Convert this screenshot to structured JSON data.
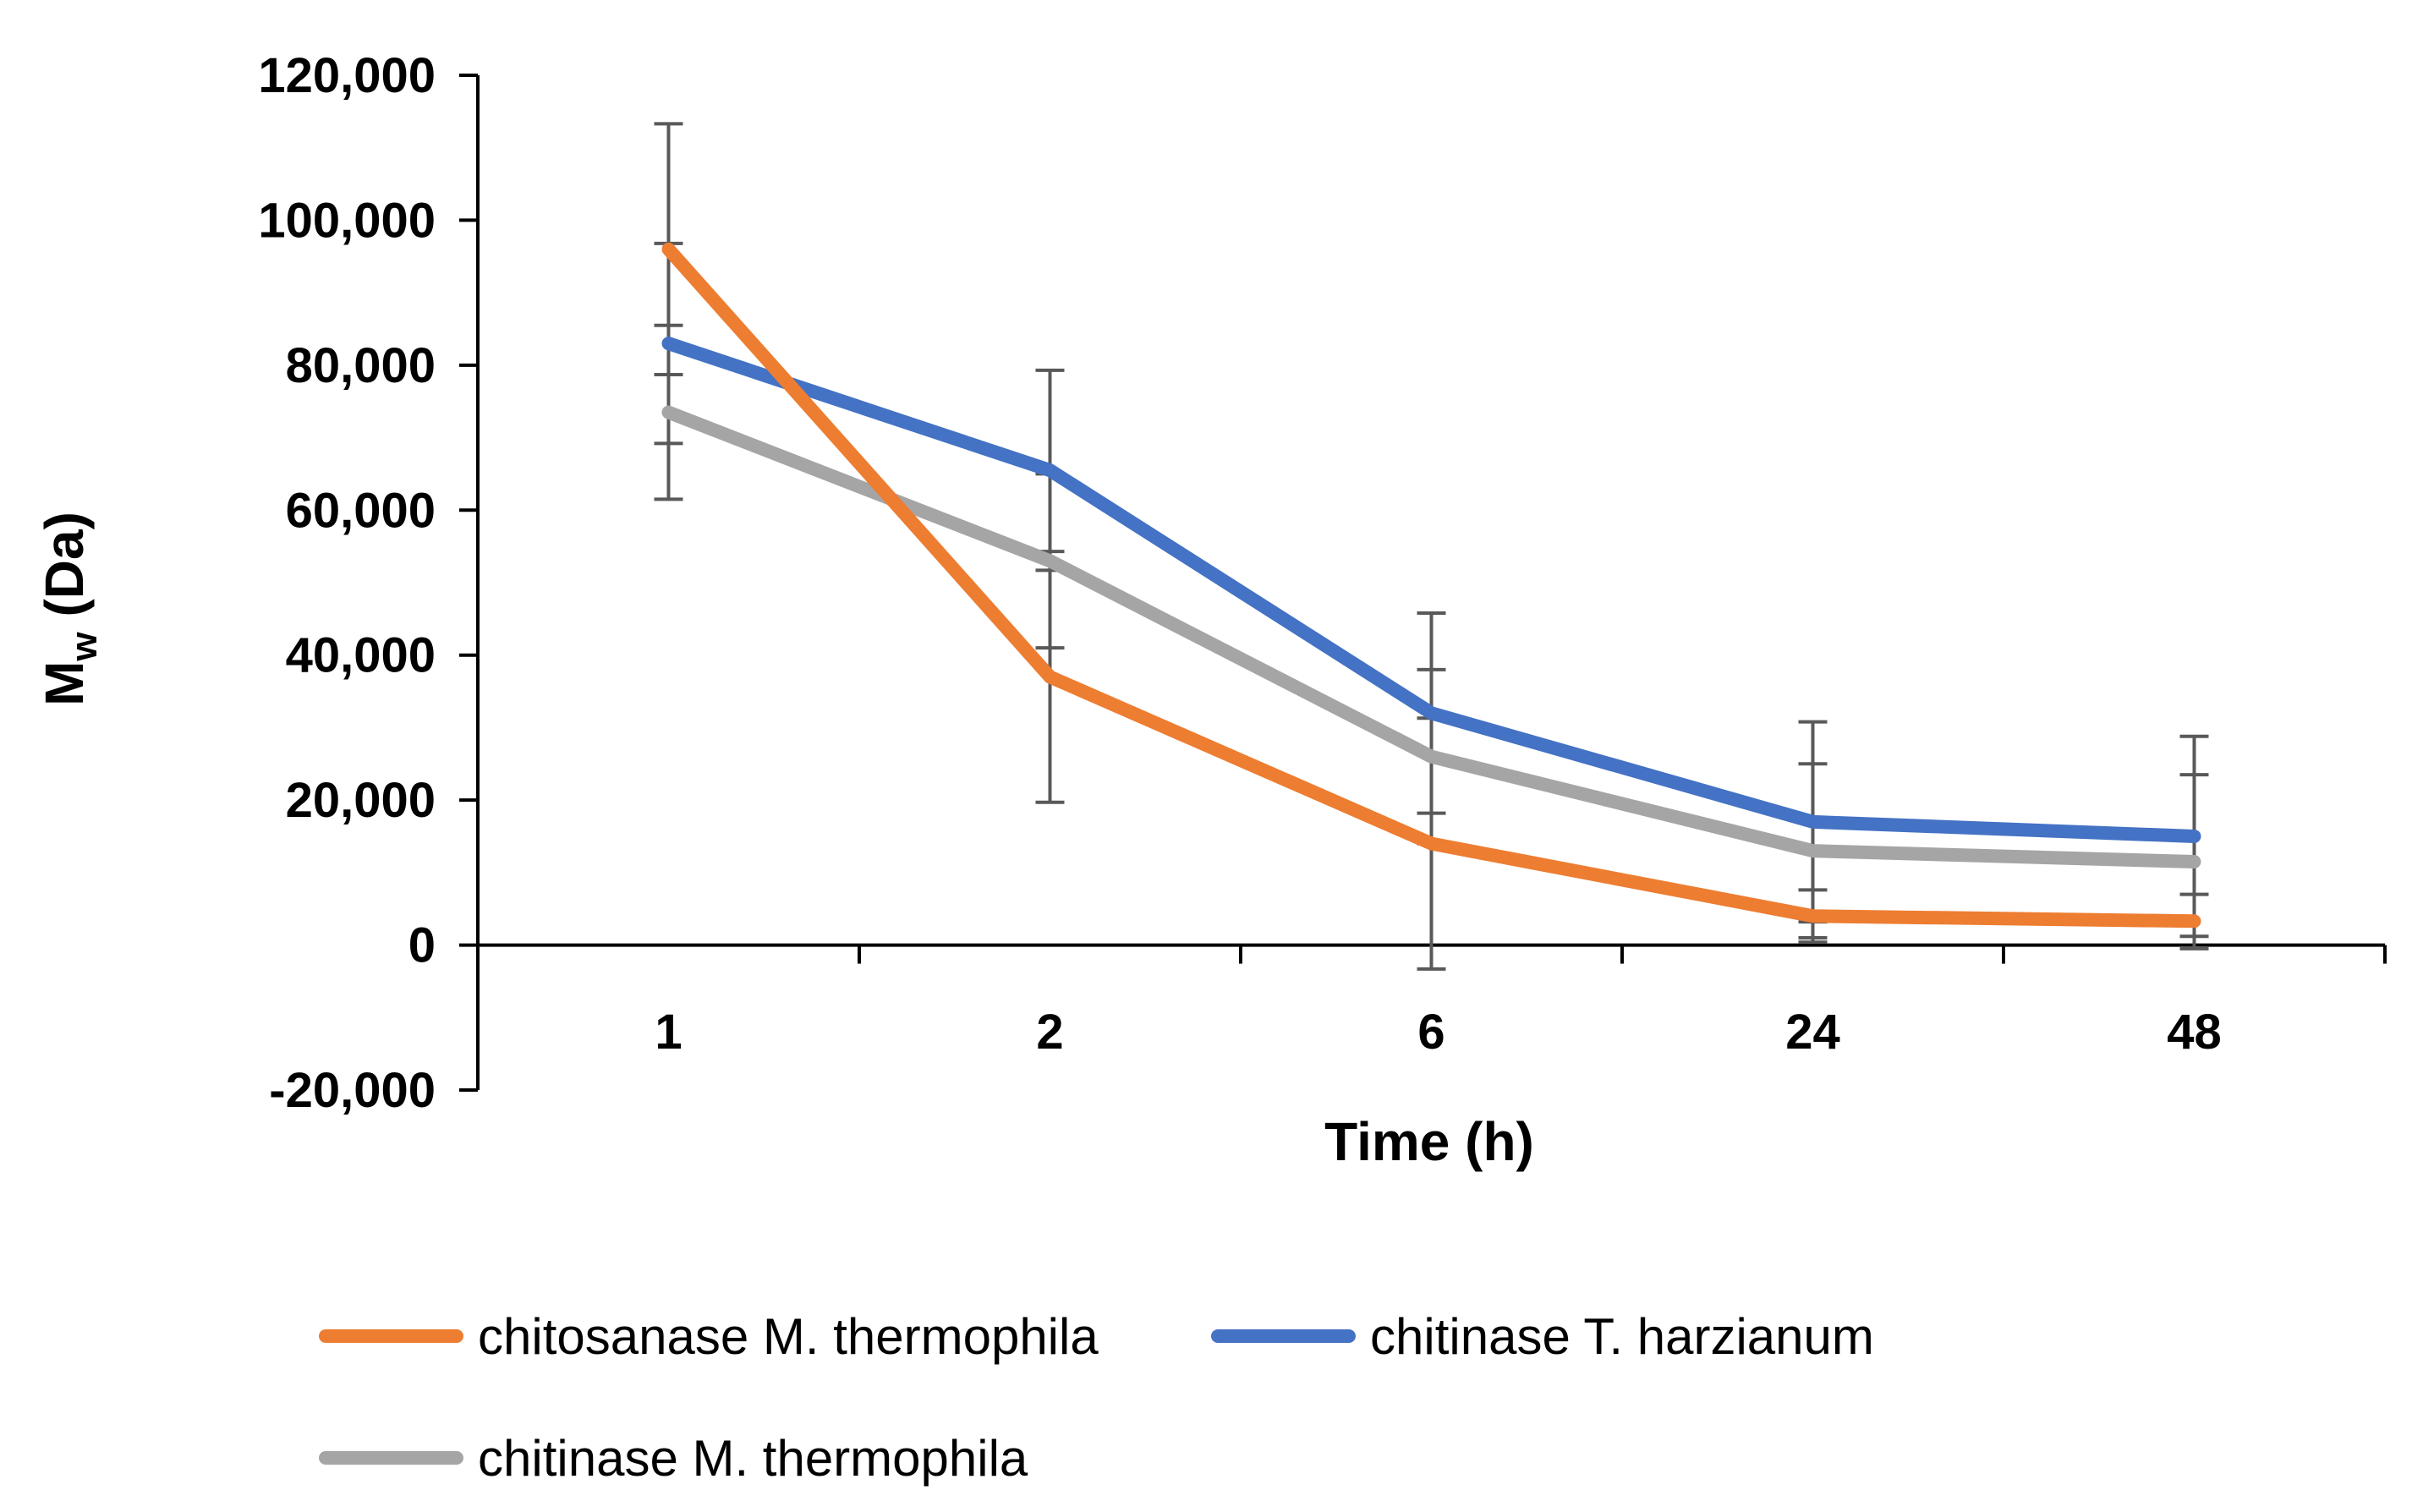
{
  "chart_data": {
    "type": "line",
    "categories": [
      "1",
      "2",
      "6",
      "24",
      "48"
    ],
    "xlabel": "Time (h)",
    "ylabel_main": "M",
    "ylabel_sub": "w",
    "ylabel_rest": " (Da)",
    "ylim": [
      -20000,
      120000
    ],
    "yticks": [
      -20000,
      0,
      20000,
      40000,
      60000,
      80000,
      100000,
      120000
    ],
    "ytick_labels": [
      "-20,000",
      "0",
      "20,000",
      "40,000",
      "60,000",
      "80,000",
      "100,000",
      "120,000"
    ],
    "grid": false,
    "legend_position": "bottom",
    "series": [
      {
        "name": "chitosanase M. thermophila",
        "color": "#ED7D31",
        "values": [
          96000,
          37000,
          14000,
          4000,
          3300
        ],
        "errors": [
          17300,
          17300,
          17300,
          3600,
          3700
        ]
      },
      {
        "name": "chitinase T. harzianum",
        "color": "#4472C4",
        "values": [
          83000,
          65500,
          32000,
          17000,
          15000
        ],
        "errors": [
          13800,
          13800,
          13800,
          13800,
          13800
        ]
      },
      {
        "name": "chitinase M. thermophila",
        "color": "#A5A5A5",
        "values": [
          73500,
          53000,
          26000,
          13000,
          11500
        ],
        "errors": [
          12000,
          12000,
          12000,
          12000,
          12000
        ]
      }
    ]
  }
}
